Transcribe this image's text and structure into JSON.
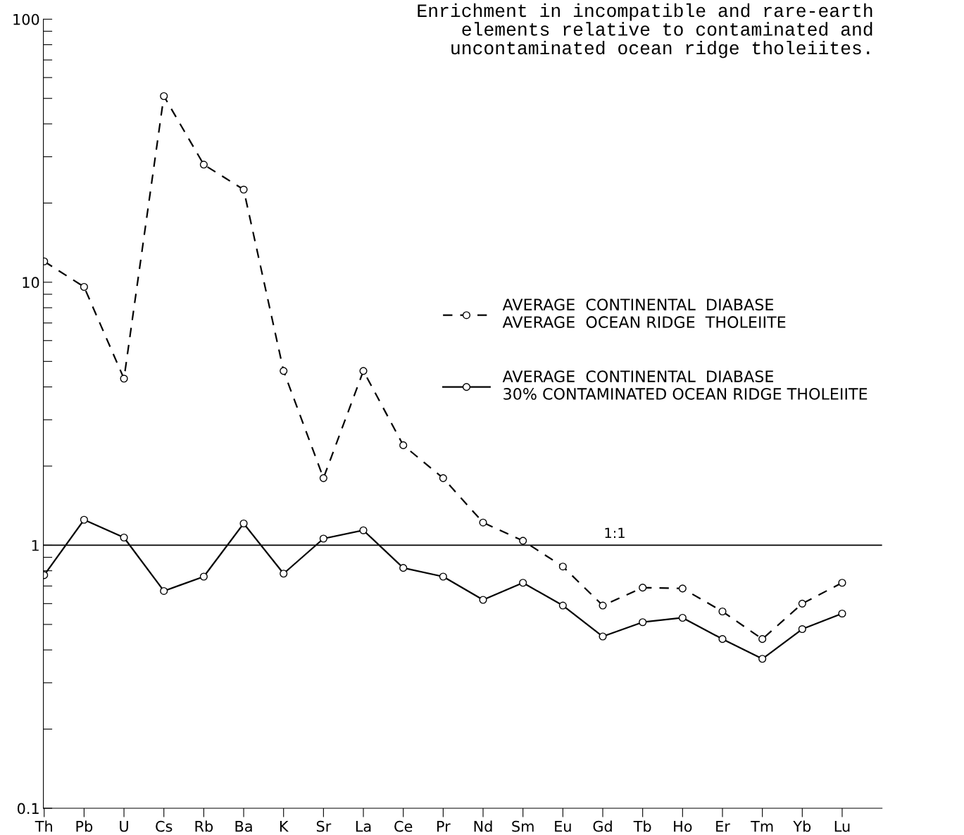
{
  "chart_data": {
    "type": "line",
    "title": "Enrichment in incompatible and rare-earth\nelements relative to contaminated and\nuncontaminated ocean ridge tholeiites.",
    "categories": [
      "Th",
      "Pb",
      "U",
      "Cs",
      "Rb",
      "Ba",
      "K",
      "Sr",
      "La",
      "Ce",
      "Pr",
      "Nd",
      "Sm",
      "Eu",
      "Gd",
      "Tb",
      "Ho",
      "Er",
      "Tm",
      "Yb",
      "Lu"
    ],
    "series": [
      {
        "name": "AVERAGE  CONTINENTAL  DIABASE\nAVERAGE  OCEAN RIDGE  THOLEIITE",
        "color": "#000000",
        "line_style": "dashed",
        "values": [
          12.0,
          9.6,
          4.3,
          51,
          28,
          22.5,
          4.6,
          1.8,
          4.6,
          2.4,
          1.8,
          1.22,
          1.04,
          0.83,
          0.59,
          0.69,
          0.685,
          0.56,
          0.44,
          0.6,
          0.72
        ]
      },
      {
        "name": "AVERAGE  CONTINENTAL  DIABASE\n30% CONTAMINATED OCEAN RIDGE THOLEIITE",
        "color": "#000000",
        "line_style": "solid",
        "values": [
          0.77,
          1.25,
          1.07,
          0.67,
          0.76,
          1.21,
          0.78,
          1.06,
          1.14,
          0.82,
          0.76,
          0.62,
          0.72,
          0.59,
          0.45,
          0.51,
          0.53,
          0.44,
          0.37,
          0.48,
          0.55
        ]
      }
    ],
    "log": "y",
    "ylim": [
      0.1,
      100
    ],
    "yticks": [
      {
        "value": 0.1,
        "label": "0.1"
      },
      {
        "value": 0.2,
        "label": null
      },
      {
        "value": 0.3,
        "label": null
      },
      {
        "value": 0.4,
        "label": null
      },
      {
        "value": 0.5,
        "label": null
      },
      {
        "value": 0.6,
        "label": null
      },
      {
        "value": 0.7,
        "label": null
      },
      {
        "value": 0.8,
        "label": null
      },
      {
        "value": 0.9,
        "label": null
      },
      {
        "value": 1,
        "label": "1"
      },
      {
        "value": 2,
        "label": null
      },
      {
        "value": 3,
        "label": null
      },
      {
        "value": 4,
        "label": null
      },
      {
        "value": 5,
        "label": null
      },
      {
        "value": 6,
        "label": null
      },
      {
        "value": 7,
        "label": null
      },
      {
        "value": 8,
        "label": null
      },
      {
        "value": 9,
        "label": null
      },
      {
        "value": 10,
        "label": "10"
      },
      {
        "value": 20,
        "label": null
      },
      {
        "value": 30,
        "label": null
      },
      {
        "value": 40,
        "label": null
      },
      {
        "value": 50,
        "label": null
      },
      {
        "value": 60,
        "label": null
      },
      {
        "value": 70,
        "label": null
      },
      {
        "value": 80,
        "label": null
      },
      {
        "value": 90,
        "label": null
      },
      {
        "value": 100,
        "label": "100"
      }
    ],
    "ref_lines": [
      {
        "axis": "y",
        "value": 1,
        "label": "1:1",
        "color": "#000000"
      }
    ],
    "marker": "circle",
    "grid": false,
    "legend": "right"
  }
}
